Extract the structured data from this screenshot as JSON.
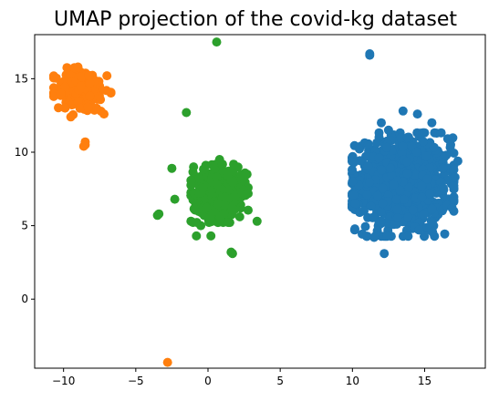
{
  "chart_data": {
    "type": "scatter",
    "title": "UMAP projection of the covid-kg dataset",
    "xlabel": "",
    "ylabel": "",
    "xlim": [
      -12,
      19.2
    ],
    "ylim": [
      -4.7,
      18
    ],
    "xticks": [
      -10,
      -5,
      0,
      5,
      10,
      15
    ],
    "yticks": [
      0,
      5,
      10,
      15
    ],
    "grid": false,
    "colors": [
      "#1f77b4",
      "#ff7f0e",
      "#2ca02c"
    ],
    "clusters": [
      {
        "color": "#1f77b4",
        "center": [
          13.5,
          7.8
        ],
        "spread": [
          1.6,
          1.6
        ],
        "count": 900,
        "extra_points": [
          [
            11.2,
            16.7
          ],
          [
            11.2,
            16.6
          ],
          [
            12.2,
            3.1
          ],
          [
            11.6,
            4.3
          ],
          [
            11.5,
            4.2
          ],
          [
            17.3,
            9.4
          ],
          [
            10.5,
            5.9
          ],
          [
            10.8,
            6.0
          ],
          [
            12.0,
            12.0
          ],
          [
            14.5,
            12.6
          ],
          [
            15.5,
            12.0
          ],
          [
            16.8,
            10.5
          ],
          [
            17.1,
            8.3
          ],
          [
            16.9,
            6.2
          ],
          [
            14.6,
            4.7
          ],
          [
            10.2,
            6.5
          ],
          [
            10.1,
            9.3
          ],
          [
            11.1,
            10.5
          ],
          [
            12.5,
            11.5
          ],
          [
            13.5,
            12.8
          ],
          [
            10.0,
            8.0
          ],
          [
            16.5,
            9.8
          ]
        ]
      },
      {
        "color": "#ff7f0e",
        "center": [
          -8.7,
          14.2
        ],
        "spread": [
          0.9,
          0.75
        ],
        "count": 170,
        "extra_points": [
          [
            -8.5,
            10.5
          ],
          [
            -8.5,
            10.7
          ],
          [
            -8.6,
            10.4
          ],
          [
            -2.8,
            -4.3
          ],
          [
            -10.2,
            14.0
          ],
          [
            -7.0,
            15.2
          ],
          [
            -9.9,
            13.0
          ],
          [
            -9.5,
            12.4
          ],
          [
            -7.2,
            12.6
          ],
          [
            -9.0,
            15.8
          ]
        ]
      },
      {
        "color": "#2ca02c",
        "center": [
          0.8,
          7.2
        ],
        "spread": [
          0.9,
          0.9
        ],
        "count": 330,
        "extra_points": [
          [
            0.6,
            17.5
          ],
          [
            -1.5,
            12.7
          ],
          [
            -2.5,
            8.9
          ],
          [
            -3.4,
            5.8
          ],
          [
            -3.5,
            5.7
          ],
          [
            1.6,
            3.2
          ],
          [
            1.7,
            3.1
          ],
          [
            -0.8,
            4.3
          ],
          [
            0.2,
            4.3
          ],
          [
            3.4,
            5.3
          ],
          [
            -2.3,
            6.8
          ],
          [
            2.7,
            8.5
          ],
          [
            -1.0,
            9.0
          ],
          [
            0.8,
            9.5
          ],
          [
            -0.5,
            5.0
          ],
          [
            2.2,
            5.6
          ]
        ]
      }
    ]
  }
}
